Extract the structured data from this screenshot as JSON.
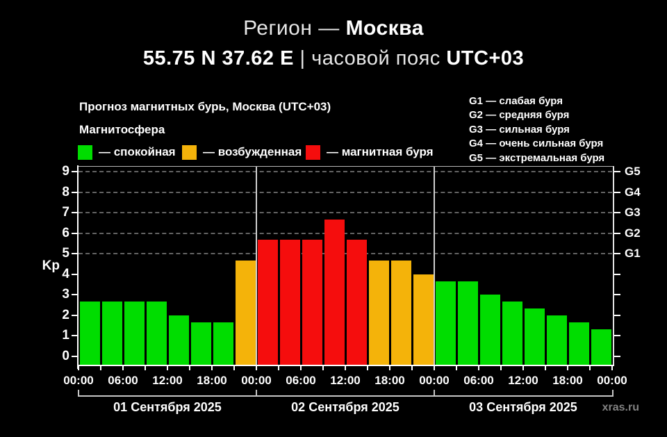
{
  "header": {
    "line1": [
      {
        "text": "Регион — ",
        "bold": false
      },
      {
        "text": "Москва",
        "bold": true
      }
    ],
    "line2": [
      {
        "text": "55.75 N 37.62 E ",
        "bold": true
      },
      {
        "text": "| часовой пояс ",
        "bold": false
      },
      {
        "text": "UTC+03",
        "bold": true
      }
    ]
  },
  "chart_header": {
    "subtitle": "Прогноз магнитных бурь, Москва (UTC+03)",
    "legend_title": "Магнитосфера",
    "legend": [
      {
        "label": "— спокойная",
        "state": "quiet",
        "color": "#00dd00"
      },
      {
        "label": "— возбужденная",
        "state": "excited",
        "color": "#f4b30a"
      },
      {
        "label": "— магнитная буря",
        "state": "storm",
        "color": "#f50d0d"
      }
    ],
    "g_legend": [
      "G1 — слабая буря",
      "G2 — средняя буря",
      "G3 — сильная буря",
      "G4 — очень сильная буря",
      "G5 — экстремальная буря"
    ]
  },
  "chart_data": {
    "type": "bar",
    "title": "Прогноз магнитных бурь, Москва (UTC+03)",
    "ylabel": "Kp",
    "ylim": [
      0,
      9
    ],
    "y_ticks": [
      0,
      1,
      2,
      3,
      4,
      5,
      6,
      7,
      8,
      9
    ],
    "grid_levels": [
      5,
      6,
      7,
      8,
      9
    ],
    "grid_on": true,
    "legend_position": "top-left",
    "right_axis_labels": [
      {
        "kp": 5,
        "label": "G1"
      },
      {
        "kp": 6,
        "label": "G2"
      },
      {
        "kp": 7,
        "label": "G3"
      },
      {
        "kp": 8,
        "label": "G4"
      },
      {
        "kp": 9,
        "label": "G5"
      }
    ],
    "x_tick_labels": [
      "00:00",
      "06:00",
      "12:00",
      "18:00",
      "00:00",
      "06:00",
      "12:00",
      "18:00",
      "00:00",
      "06:00",
      "12:00",
      "18:00",
      "00:00"
    ],
    "bar_interval_hours": 3,
    "color_rule": {
      "storm_min_kp": 5,
      "excited_min_kp": 4
    },
    "colors": {
      "quiet": "#00dd00",
      "excited": "#f4b30a",
      "storm": "#f50d0d"
    },
    "days": [
      {
        "date": "01 Сентября 2025",
        "kp_values": [
          2.67,
          2.67,
          2.67,
          2.67,
          2.0,
          1.67,
          1.67,
          4.67
        ]
      },
      {
        "date": "02 Сентября 2025",
        "kp_values": [
          5.67,
          5.67,
          5.67,
          6.67,
          5.67,
          4.67,
          4.67,
          4.0
        ]
      },
      {
        "date": "03 Сентября 2025",
        "kp_values": [
          3.67,
          3.67,
          3.0,
          2.67,
          2.33,
          2.0,
          1.67,
          1.33
        ]
      }
    ]
  },
  "watermark": "xras.ru"
}
